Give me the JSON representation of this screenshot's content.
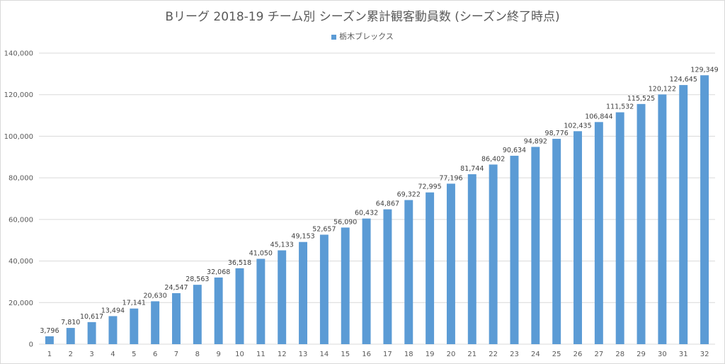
{
  "colors": {
    "bar": "#5b9bd5",
    "grid": "#d9d9d9",
    "text": "#595959"
  },
  "chart_data": {
    "type": "bar",
    "title": "Bリーグ 2018-19 チーム別 シーズン累計観客動員数 (シーズン終了時点)",
    "legend_position": "top",
    "grid": true,
    "ylim": [
      0,
      140000
    ],
    "yticks": [
      0,
      20000,
      40000,
      60000,
      80000,
      100000,
      120000,
      140000
    ],
    "ytick_labels": [
      "0",
      "20,000",
      "40,000",
      "60,000",
      "80,000",
      "100,000",
      "120,000",
      "140,000"
    ],
    "categories": [
      "1",
      "2",
      "3",
      "4",
      "5",
      "6",
      "7",
      "8",
      "9",
      "10",
      "11",
      "12",
      "13",
      "14",
      "15",
      "16",
      "17",
      "18",
      "19",
      "20",
      "21",
      "22",
      "23",
      "24",
      "25",
      "26",
      "27",
      "28",
      "29",
      "30",
      "31",
      "32"
    ],
    "series": [
      {
        "name": "栃木ブレックス",
        "values": [
          3796,
          7810,
          10617,
          13494,
          17141,
          20630,
          24547,
          28563,
          32068,
          36518,
          41050,
          45133,
          49153,
          52657,
          56090,
          60432,
          64867,
          69322,
          72995,
          77196,
          81744,
          86402,
          90634,
          94892,
          98776,
          102435,
          106844,
          111532,
          115525,
          120122,
          124645,
          129349
        ],
        "labels": [
          "3,796",
          "7,810",
          "10,617",
          "13,494",
          "17,141",
          "20,630",
          "24,547",
          "28,563",
          "32,068",
          "36,518",
          "41,050",
          "45,133",
          "49,153",
          "52,657",
          "56,090",
          "60,432",
          "64,867",
          "69,322",
          "72,995",
          "77,196",
          "81,744",
          "86,402",
          "90,634",
          "94,892",
          "98,776",
          "102,435",
          "106,844",
          "111,532",
          "115,525",
          "120,122",
          "124,645",
          "129,349"
        ]
      }
    ]
  }
}
